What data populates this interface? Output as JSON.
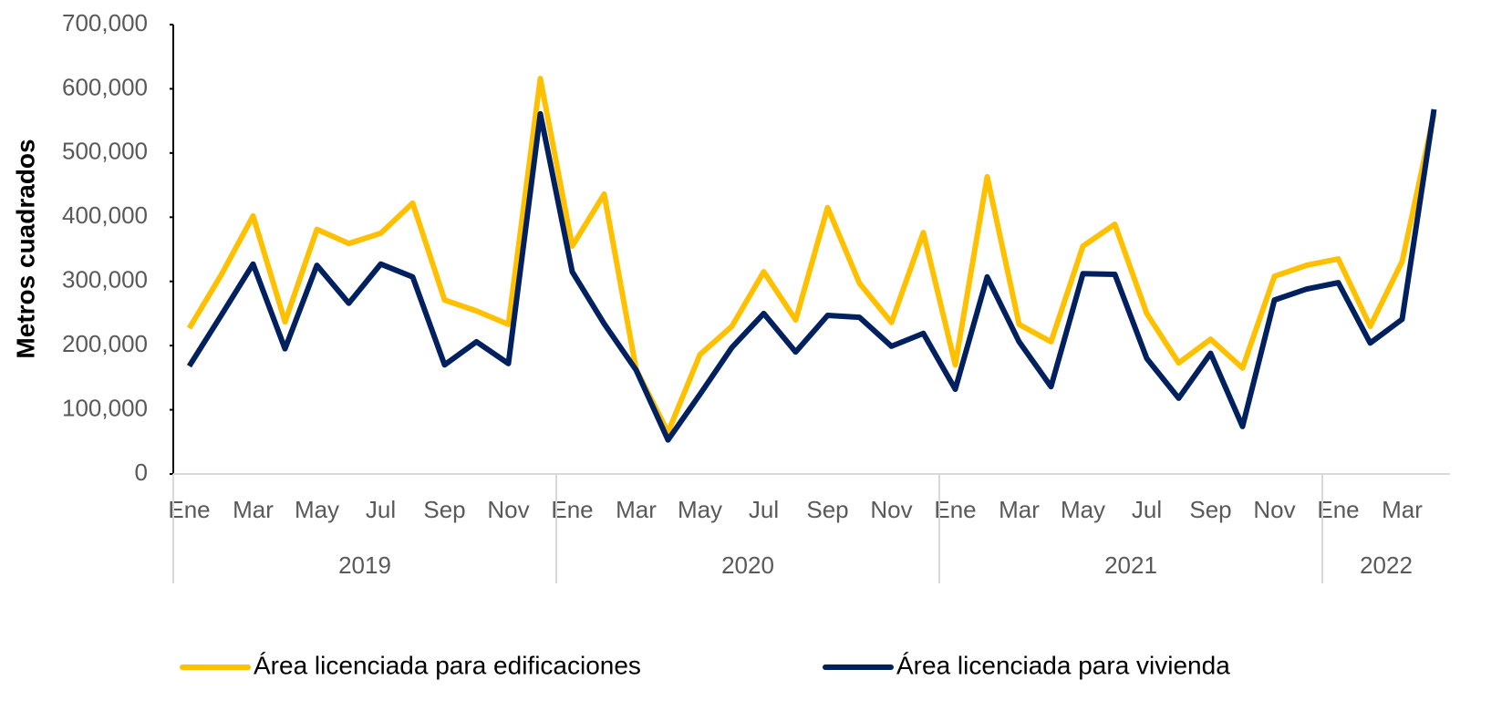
{
  "chart_data": {
    "type": "line",
    "y_label": "Metros cuadrados",
    "categories": [
      "Ene",
      null,
      "Mar",
      null,
      "May",
      null,
      "Jul",
      null,
      "Sep",
      null,
      "Nov",
      null,
      "Ene",
      null,
      "Mar",
      null,
      "May",
      null,
      "Jul",
      null,
      "Sep",
      null,
      "Nov",
      null,
      "Ene",
      null,
      "Mar",
      null,
      "May",
      null,
      "Jul",
      null,
      "Sep",
      null,
      "Nov",
      null,
      "Ene",
      null,
      "Mar",
      null
    ],
    "x_groups": [
      {
        "label": "2019",
        "count": 12
      },
      {
        "label": "2020",
        "count": 12
      },
      {
        "label": "2021",
        "count": 12
      },
      {
        "label": "2022",
        "count": 4
      }
    ],
    "series": [
      {
        "name": "Área licenciada para edificaciones",
        "color": "#FFC000",
        "values": [
          227000,
          310000,
          402000,
          237000,
          381000,
          359000,
          375000,
          422000,
          271000,
          254000,
          233000,
          616000,
          355000,
          436000,
          163000,
          65000,
          186000,
          230000,
          315000,
          240000,
          415000,
          297000,
          236000,
          376000,
          170000,
          463000,
          233000,
          206000,
          355000,
          389000,
          250000,
          173000,
          210000,
          165000,
          308000,
          325000,
          335000,
          230000,
          331000,
          561000
        ]
      },
      {
        "name": "Área licenciada para vivienda",
        "color": "#002060",
        "values": [
          168000,
          247000,
          327000,
          195000,
          325000,
          266000,
          327000,
          307000,
          170000,
          206000,
          172000,
          561000,
          315000,
          234000,
          162000,
          53000,
          124000,
          197000,
          250000,
          190000,
          247000,
          244000,
          199000,
          219000,
          132000,
          307000,
          206000,
          136000,
          312000,
          311000,
          180000,
          118000,
          188000,
          74000,
          271000,
          288000,
          298000,
          204000,
          241000,
          568000
        ]
      }
    ],
    "ylim": [
      0,
      700000
    ],
    "yticks": [
      0,
      {
        "value": 100000,
        "label": "100,000"
      },
      {
        "value": 200000,
        "label": "200,000"
      },
      {
        "value": 300000,
        "label": "300,000"
      },
      {
        "value": 400000,
        "label": "400,000"
      },
      {
        "value": 500000,
        "label": "500,000"
      },
      {
        "value": 600000,
        "label": "600,000"
      },
      {
        "value": 700000,
        "label": "700,000"
      }
    ],
    "legend": "bottom"
  }
}
